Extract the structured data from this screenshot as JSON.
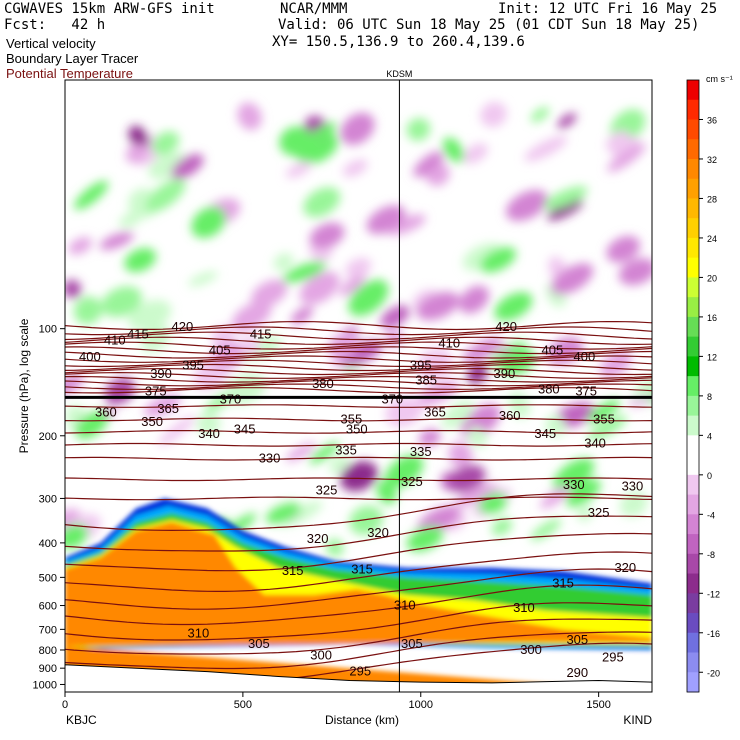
{
  "header": {
    "model": "CGWAVES 15km ARW-GFS init",
    "center": "NCAR/MMM",
    "init": "Init: 12 UTC Fri 16 May 25",
    "fcst": "Fcst:   42 h",
    "valid": "Valid: 06 UTC Sun 18 May 25 (01 CDT Sun 18 May 25)",
    "field1": "Vertical velocity",
    "xy": "XY= 150.5,136.9 to 260.4,139.6",
    "field2": "Boundary Layer Tracer",
    "field3": "Potential Temperature",
    "field3_color": "#7a1010"
  },
  "chart_data": {
    "type": "heatmap",
    "title": "",
    "xlabel": "Distance (km)",
    "ylabel": "Pressure (hPa), log scale",
    "xlim": [
      0,
      1650
    ],
    "ylim": [
      1050,
      20
    ],
    "y_scale": "log",
    "x_ticks": [
      0,
      500,
      1000,
      1500
    ],
    "y_ticks": [
      100,
      200,
      300,
      400,
      500,
      600,
      700,
      800,
      900,
      1000
    ],
    "station_left": "KBJC",
    "station_right": "KIND",
    "station_mid": "KDSM",
    "station_mid_x": 940,
    "colorbar": {
      "units": "cm s⁻¹",
      "labels": [
        36,
        32,
        28,
        24,
        20,
        16,
        12,
        8,
        4,
        0,
        -4,
        -8,
        -12,
        -16,
        -20
      ],
      "colors": [
        "#ee0000",
        "#ff2a00",
        "#ff4a00",
        "#ff6a00",
        "#ff8800",
        "#ffa000",
        "#ffb800",
        "#ffd000",
        "#ffe800",
        "#ffff00",
        "#ccff33",
        "#99ee44",
        "#66dd55",
        "#33cc33",
        "#00bb00",
        "#66ee66",
        "#99f599",
        "#ccfacc",
        "#ffffff",
        "#ffffff",
        "#f0c8f0",
        "#e3a6e3",
        "#d384d3",
        "#c064c0",
        "#a848a8",
        "#8c2c8c",
        "#7a3ca0",
        "#6a4cc0",
        "#7070e0",
        "#8c8cf0",
        "#a0a0ff"
      ]
    },
    "theta_labels": [
      {
        "x": 140,
        "p": 108,
        "v": "410"
      },
      {
        "x": 205,
        "p": 104,
        "v": "415"
      },
      {
        "x": 330,
        "p": 99,
        "v": "420"
      },
      {
        "x": 550,
        "p": 104,
        "v": "415"
      },
      {
        "x": 1080,
        "p": 110,
        "v": "410"
      },
      {
        "x": 1240,
        "p": 99,
        "v": "420"
      },
      {
        "x": 1370,
        "p": 115,
        "v": "405"
      },
      {
        "x": 1460,
        "p": 120,
        "v": "400"
      },
      {
        "x": 70,
        "p": 120,
        "v": "400"
      },
      {
        "x": 435,
        "p": 115,
        "v": "405"
      },
      {
        "x": 270,
        "p": 134,
        "v": "390"
      },
      {
        "x": 360,
        "p": 127,
        "v": "395"
      },
      {
        "x": 1000,
        "p": 127,
        "v": "395"
      },
      {
        "x": 1235,
        "p": 134,
        "v": "390"
      },
      {
        "x": 725,
        "p": 143,
        "v": "380"
      },
      {
        "x": 1015,
        "p": 140,
        "v": "385"
      },
      {
        "x": 1360,
        "p": 148,
        "v": "380"
      },
      {
        "x": 1465,
        "p": 150,
        "v": "375"
      },
      {
        "x": 255,
        "p": 150,
        "v": "375"
      },
      {
        "x": 465,
        "p": 158,
        "v": "370"
      },
      {
        "x": 920,
        "p": 158,
        "v": "370"
      },
      {
        "x": 290,
        "p": 168,
        "v": "365"
      },
      {
        "x": 1040,
        "p": 172,
        "v": "365"
      },
      {
        "x": 115,
        "p": 172,
        "v": "360"
      },
      {
        "x": 1250,
        "p": 176,
        "v": "360"
      },
      {
        "x": 245,
        "p": 183,
        "v": "350"
      },
      {
        "x": 805,
        "p": 180,
        "v": "355"
      },
      {
        "x": 1515,
        "p": 180,
        "v": "355"
      },
      {
        "x": 820,
        "p": 192,
        "v": "350"
      },
      {
        "x": 505,
        "p": 192,
        "v": "345"
      },
      {
        "x": 1350,
        "p": 198,
        "v": "345"
      },
      {
        "x": 405,
        "p": 198,
        "v": "340"
      },
      {
        "x": 1490,
        "p": 210,
        "v": "340"
      },
      {
        "x": 790,
        "p": 220,
        "v": "335"
      },
      {
        "x": 1000,
        "p": 222,
        "v": "335"
      },
      {
        "x": 575,
        "p": 232,
        "v": "330"
      },
      {
        "x": 1430,
        "p": 275,
        "v": "330"
      },
      {
        "x": 1595,
        "p": 278,
        "v": "330"
      },
      {
        "x": 735,
        "p": 285,
        "v": "325"
      },
      {
        "x": 975,
        "p": 270,
        "v": "325"
      },
      {
        "x": 1500,
        "p": 330,
        "v": "325"
      },
      {
        "x": 710,
        "p": 390,
        "v": "320"
      },
      {
        "x": 880,
        "p": 375,
        "v": "320"
      },
      {
        "x": 1575,
        "p": 470,
        "v": "320"
      },
      {
        "x": 640,
        "p": 480,
        "v": "315"
      },
      {
        "x": 835,
        "p": 475,
        "v": "315"
      },
      {
        "x": 1400,
        "p": 520,
        "v": "315"
      },
      {
        "x": 955,
        "p": 600,
        "v": "310"
      },
      {
        "x": 1290,
        "p": 610,
        "v": "310"
      },
      {
        "x": 375,
        "p": 720,
        "v": "310"
      },
      {
        "x": 545,
        "p": 770,
        "v": "305"
      },
      {
        "x": 975,
        "p": 770,
        "v": "305"
      },
      {
        "x": 1440,
        "p": 750,
        "v": "305"
      },
      {
        "x": 720,
        "p": 830,
        "v": "300"
      },
      {
        "x": 1310,
        "p": 800,
        "v": "300"
      },
      {
        "x": 830,
        "p": 920,
        "v": "295"
      },
      {
        "x": 1540,
        "p": 840,
        "v": "295"
      },
      {
        "x": 1440,
        "p": 930,
        "v": "290"
      }
    ]
  }
}
